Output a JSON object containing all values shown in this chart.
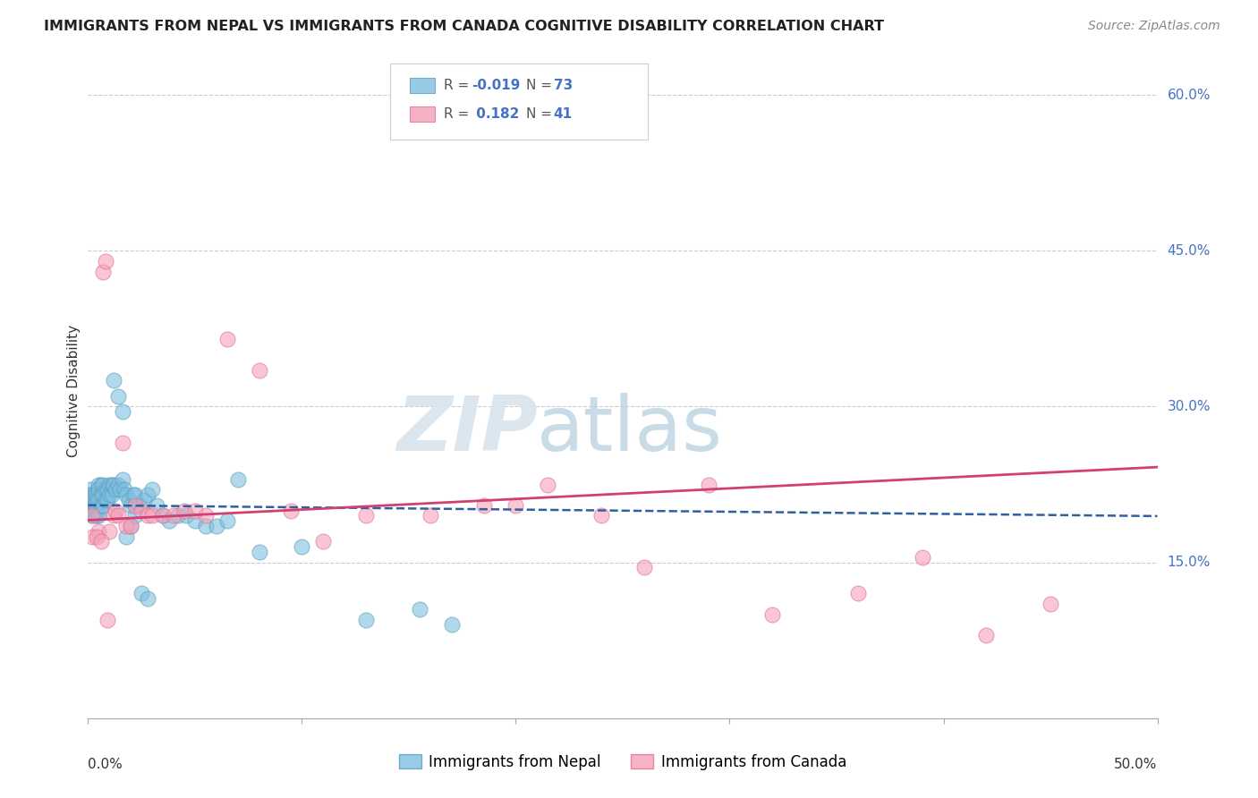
{
  "title": "IMMIGRANTS FROM NEPAL VS IMMIGRANTS FROM CANADA COGNITIVE DISABILITY CORRELATION CHART",
  "source": "Source: ZipAtlas.com",
  "ylabel": "Cognitive Disability",
  "xlim": [
    0.0,
    0.5
  ],
  "ylim": [
    0.0,
    0.63
  ],
  "yticks": [
    0.0,
    0.15,
    0.3,
    0.45,
    0.6
  ],
  "ytick_labels": [
    "",
    "15.0%",
    "30.0%",
    "45.0%",
    "60.0%"
  ],
  "watermark_zip": "ZIP",
  "watermark_atlas": "atlas",
  "nepal_color": "#7fbfdf",
  "canada_color": "#f4a0b8",
  "nepal_edge_color": "#5a9ec0",
  "canada_edge_color": "#e07090",
  "nepal_line_color": "#3060a0",
  "canada_line_color": "#d04070",
  "nepal_R": -0.019,
  "nepal_N": 73,
  "canada_R": 0.182,
  "canada_N": 41,
  "nepal_x": [
    0.001,
    0.001,
    0.001,
    0.002,
    0.002,
    0.002,
    0.002,
    0.002,
    0.003,
    0.003,
    0.003,
    0.003,
    0.003,
    0.004,
    0.004,
    0.004,
    0.004,
    0.005,
    0.005,
    0.005,
    0.005,
    0.006,
    0.006,
    0.006,
    0.007,
    0.007,
    0.007,
    0.008,
    0.008,
    0.009,
    0.009,
    0.01,
    0.01,
    0.011,
    0.011,
    0.012,
    0.013,
    0.014,
    0.015,
    0.016,
    0.017,
    0.018,
    0.019,
    0.02,
    0.021,
    0.022,
    0.024,
    0.026,
    0.028,
    0.03,
    0.032,
    0.035,
    0.038,
    0.042,
    0.046,
    0.05,
    0.055,
    0.06,
    0.065,
    0.07,
    0.08,
    0.1,
    0.13,
    0.155,
    0.17,
    0.012,
    0.014,
    0.016,
    0.018,
    0.02,
    0.022,
    0.025,
    0.028
  ],
  "nepal_y": [
    0.22,
    0.215,
    0.205,
    0.215,
    0.21,
    0.205,
    0.2,
    0.195,
    0.215,
    0.21,
    0.205,
    0.2,
    0.195,
    0.215,
    0.21,
    0.2,
    0.195,
    0.225,
    0.22,
    0.21,
    0.195,
    0.225,
    0.215,
    0.205,
    0.225,
    0.215,
    0.205,
    0.22,
    0.21,
    0.22,
    0.21,
    0.225,
    0.215,
    0.225,
    0.215,
    0.225,
    0.22,
    0.225,
    0.22,
    0.23,
    0.22,
    0.215,
    0.21,
    0.205,
    0.215,
    0.215,
    0.205,
    0.21,
    0.215,
    0.22,
    0.205,
    0.195,
    0.19,
    0.195,
    0.195,
    0.19,
    0.185,
    0.185,
    0.19,
    0.23,
    0.16,
    0.165,
    0.095,
    0.105,
    0.09,
    0.325,
    0.31,
    0.295,
    0.175,
    0.185,
    0.195,
    0.12,
    0.115
  ],
  "canada_x": [
    0.002,
    0.005,
    0.007,
    0.008,
    0.01,
    0.012,
    0.013,
    0.014,
    0.016,
    0.018,
    0.02,
    0.022,
    0.025,
    0.028,
    0.03,
    0.035,
    0.04,
    0.045,
    0.05,
    0.055,
    0.065,
    0.08,
    0.095,
    0.11,
    0.13,
    0.16,
    0.185,
    0.2,
    0.215,
    0.24,
    0.26,
    0.29,
    0.32,
    0.36,
    0.39,
    0.42,
    0.45,
    0.002,
    0.004,
    0.006,
    0.009
  ],
  "canada_y": [
    0.195,
    0.18,
    0.43,
    0.44,
    0.18,
    0.195,
    0.2,
    0.195,
    0.265,
    0.185,
    0.185,
    0.205,
    0.2,
    0.195,
    0.195,
    0.195,
    0.195,
    0.2,
    0.2,
    0.195,
    0.365,
    0.335,
    0.2,
    0.17,
    0.195,
    0.195,
    0.205,
    0.205,
    0.225,
    0.195,
    0.145,
    0.225,
    0.1,
    0.12,
    0.155,
    0.08,
    0.11,
    0.175,
    0.175,
    0.17,
    0.095
  ]
}
